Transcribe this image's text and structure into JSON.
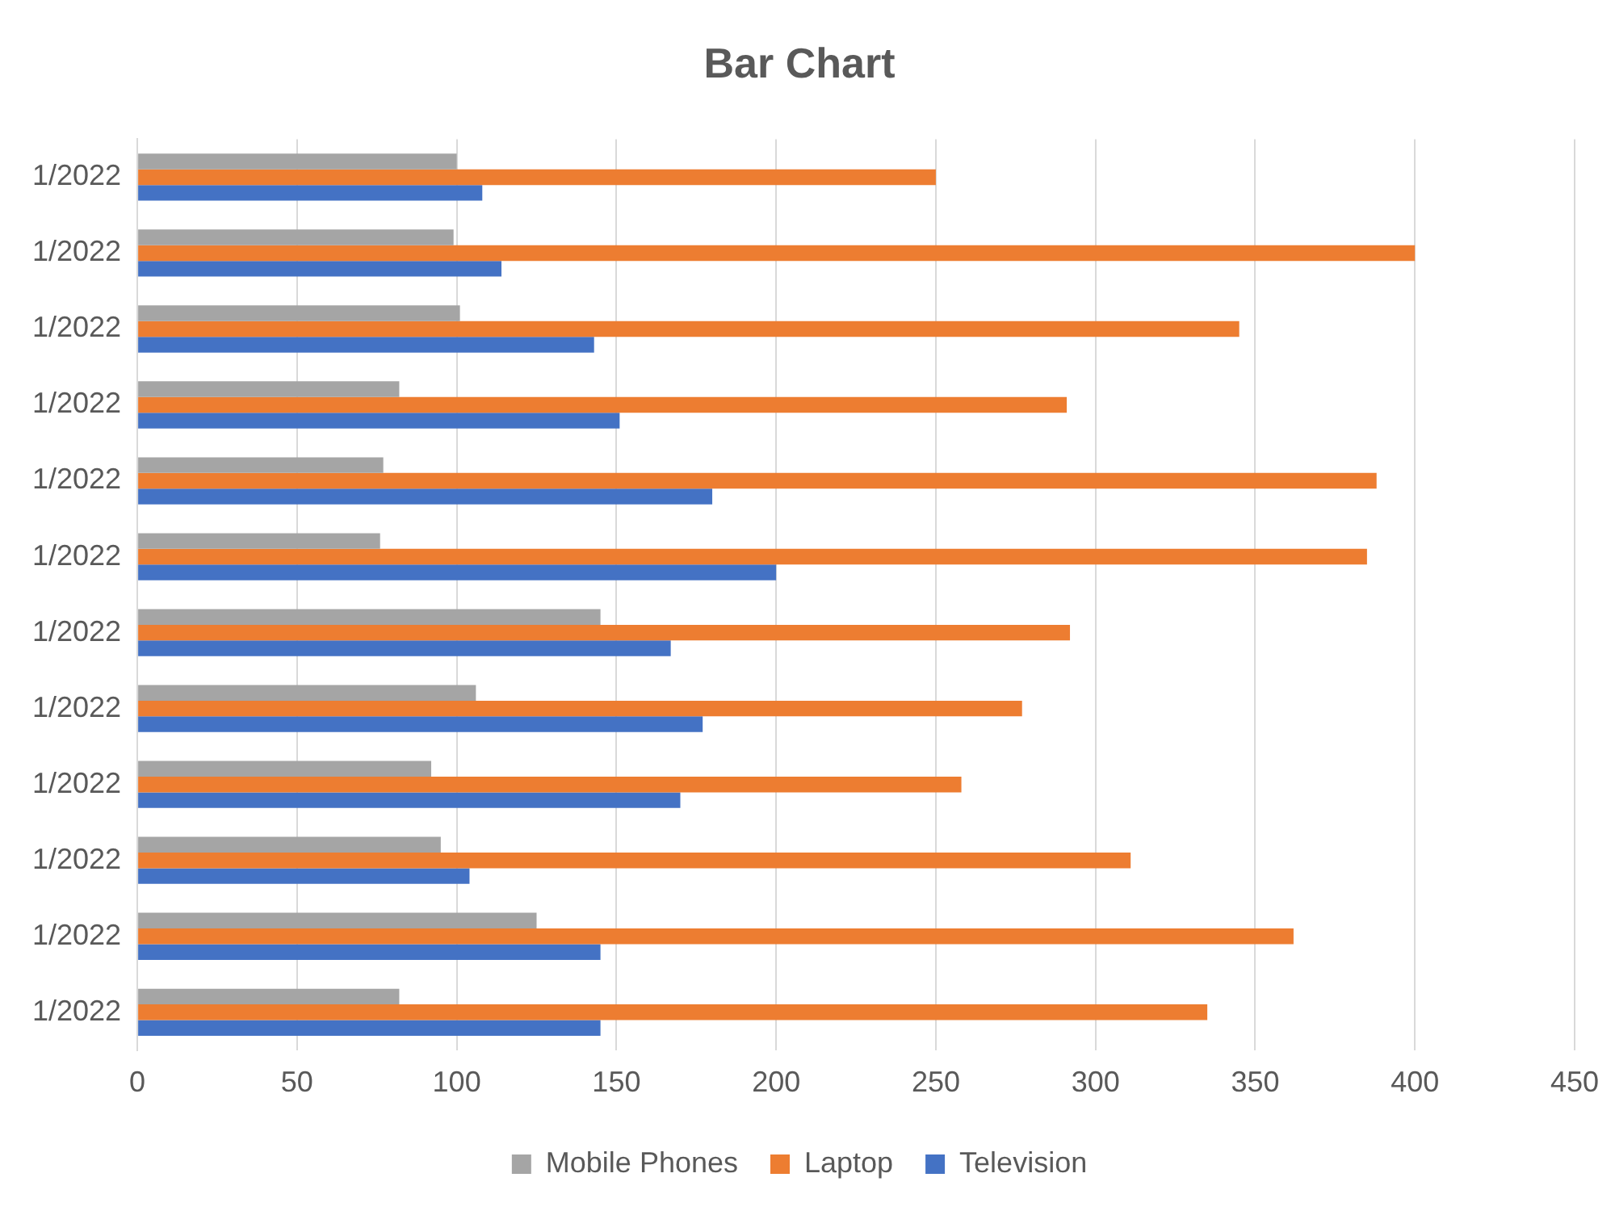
{
  "chart_data": {
    "type": "bar",
    "orientation": "horizontal",
    "title": "Bar Chart",
    "categories": [
      "1/2022",
      "1/2022",
      "1/2022",
      "1/2022",
      "1/2022",
      "1/2022",
      "1/2022",
      "1/2022",
      "1/2022",
      "1/2022",
      "1/2022",
      "1/2022"
    ],
    "series": [
      {
        "name": "Mobile Phones",
        "color": "#a5a5a5",
        "values": [
          100,
          99,
          101,
          82,
          77,
          76,
          145,
          106,
          92,
          95,
          125,
          82
        ]
      },
      {
        "name": "Laptop",
        "color": "#ed7d31",
        "values": [
          250,
          400,
          345,
          291,
          388,
          385,
          292,
          277,
          258,
          311,
          362,
          335
        ]
      },
      {
        "name": "Television",
        "color": "#4472c4",
        "values": [
          108,
          114,
          143,
          151,
          180,
          200,
          167,
          177,
          170,
          104,
          145,
          145
        ]
      }
    ],
    "xlim": [
      0,
      450
    ],
    "xticks": [
      0,
      50,
      100,
      150,
      200,
      250,
      300,
      350,
      400,
      450
    ],
    "grid": "x",
    "legend": "bottom"
  }
}
